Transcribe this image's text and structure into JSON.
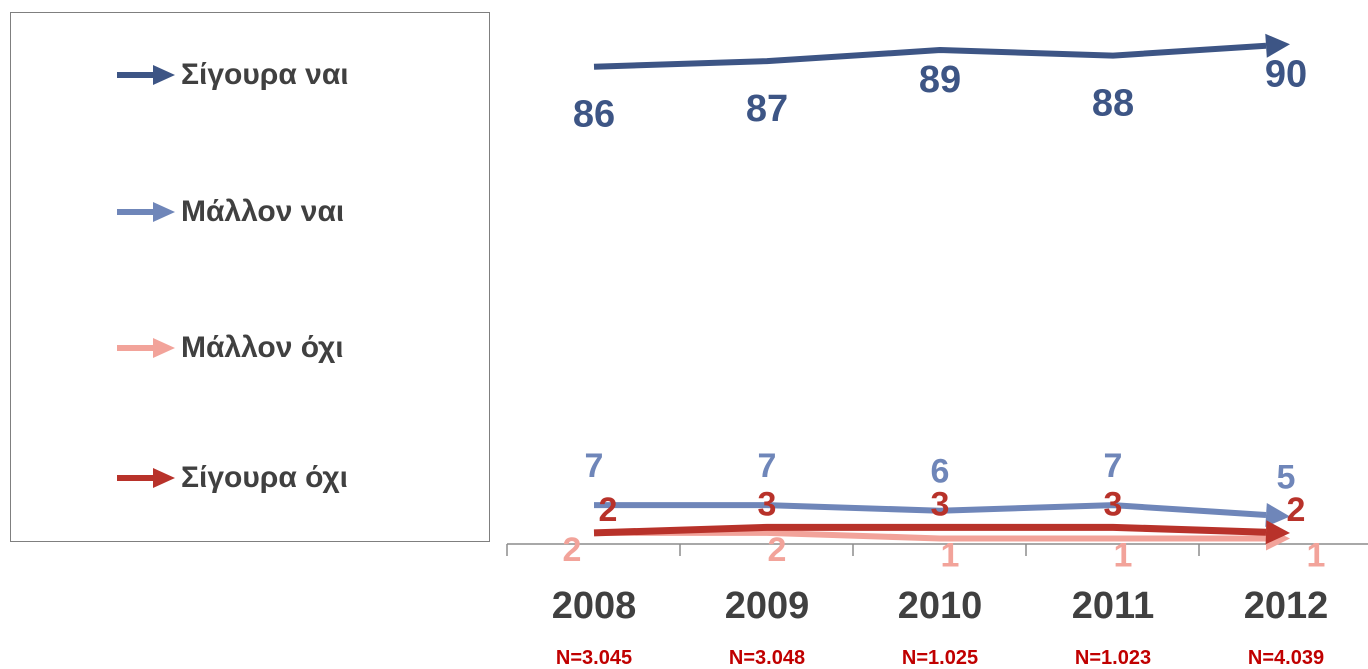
{
  "chart_data": {
    "type": "line",
    "categories": [
      "2008",
      "2009",
      "2010",
      "2011",
      "2012"
    ],
    "sample_sizes": [
      "N=3.045",
      "N=3.048",
      "N=1.025",
      "N=1.023",
      "N=4.039"
    ],
    "series": [
      {
        "name": "Σίγουρα ναι",
        "values": [
          86,
          87,
          89,
          88,
          90
        ],
        "color": "#3d5585"
      },
      {
        "name": "Μάλλον ναι",
        "values": [
          7,
          7,
          6,
          7,
          5
        ],
        "color": "#6f86b9"
      },
      {
        "name": "Μάλλον όχι",
        "values": [
          2,
          2,
          1,
          1,
          1
        ],
        "color": "#f2a39a"
      },
      {
        "name": "Σίγουρα όχι",
        "values": [
          2,
          3,
          3,
          3,
          2
        ],
        "color": "#b8322a"
      }
    ],
    "title": "",
    "xlabel": "",
    "ylabel": "",
    "legend": "left",
    "grid": false,
    "sample_size_color": "#c00000",
    "axis_label_color": "#404040"
  }
}
